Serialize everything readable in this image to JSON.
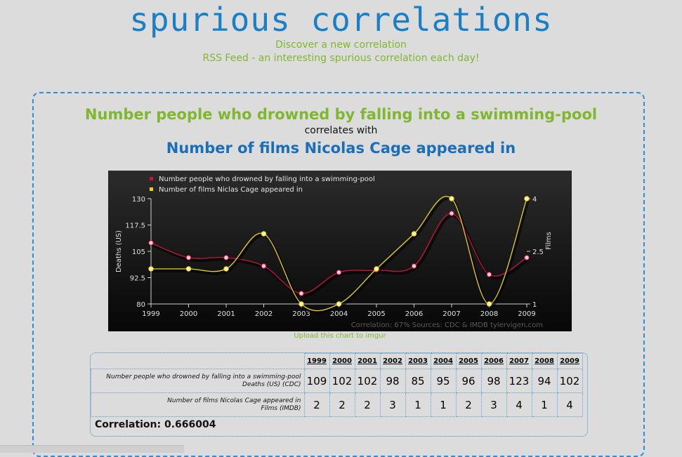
{
  "site": {
    "logo": "spurious correlations",
    "link_discover": "Discover a new correlation",
    "link_rss": "RSS Feed - an interesting spurious correlation each day!"
  },
  "main": {
    "variable1": "Number people who drowned by falling into a swimming-pool",
    "correlates_text": "correlates with",
    "variable2": "Number of films Nicolas Cage appeared in",
    "upload_link": "Upload this chart to imgur"
  },
  "chart_data": {
    "type": "line",
    "x": [
      1999,
      2000,
      2001,
      2002,
      2003,
      2004,
      2005,
      2006,
      2007,
      2008,
      2009
    ],
    "series": [
      {
        "name": "Number people who drowned by falling into a swimming-pool",
        "axis": "left",
        "color": "#c8143c",
        "values": [
          109,
          102,
          102,
          98,
          85,
          95,
          96,
          98,
          123,
          94,
          102
        ]
      },
      {
        "name": "Number of films Niclas Cage appeared in",
        "axis": "right",
        "color": "#e8d21c",
        "values": [
          2,
          2,
          2,
          3,
          1,
          1,
          2,
          3,
          4,
          1,
          4
        ]
      }
    ],
    "ylabel": "Deaths (US)",
    "y2label": "Films",
    "ylim": [
      80,
      130
    ],
    "y2lim": [
      1,
      4
    ],
    "yticks": [
      "80",
      "92.5",
      "105",
      "117.5",
      "130"
    ],
    "y2ticks": [
      "1",
      "2.5",
      "4"
    ],
    "footer": "Correlation: 67%    Sources: CDC & IMDB    tylervigen.com",
    "legend_position": "top-left"
  },
  "table": {
    "years": [
      "1999",
      "2000",
      "2001",
      "2002",
      "2003",
      "2004",
      "2005",
      "2006",
      "2007",
      "2008",
      "2009"
    ],
    "row1_label_line1": "Number people who drowned by falling into a swimming-pool",
    "row1_label_line2": "Deaths (US) (CDC)",
    "row1_values": [
      "109",
      "102",
      "102",
      "98",
      "85",
      "95",
      "96",
      "98",
      "123",
      "94",
      "102"
    ],
    "row2_label_line1": "Number of films Nicolas Cage appeared in",
    "row2_label_line2": "Films (IMDB)",
    "row2_values": [
      "2",
      "2",
      "2",
      "3",
      "1",
      "1",
      "2",
      "3",
      "4",
      "1",
      "4"
    ],
    "correlation": "Correlation: 0.666004"
  }
}
